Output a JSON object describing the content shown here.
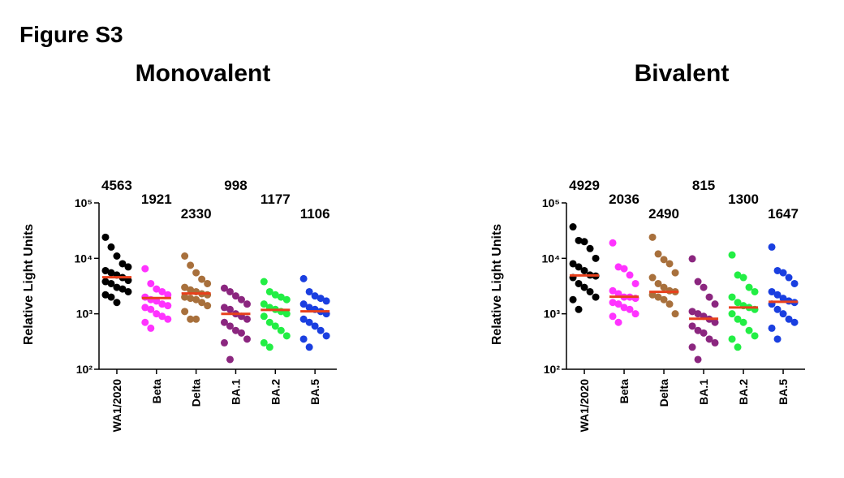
{
  "figure_title": "Figure S3",
  "chart_data": [
    {
      "type": "strip",
      "title": "Monovalent",
      "y_label": "Relative Light Units",
      "log_scale": true,
      "ylim": [
        100,
        100000
      ],
      "yticks": [
        {
          "value": 100,
          "label": "10²"
        },
        {
          "value": 1000,
          "label": "10³"
        },
        {
          "value": 10000,
          "label": "10⁴"
        },
        {
          "value": 100000,
          "label": "10⁵"
        }
      ],
      "categories": [
        "WA1/2020",
        "Beta",
        "Delta",
        "BA.1",
        "BA.2",
        "BA.5"
      ],
      "colors": [
        "#000000",
        "#ff33ff",
        "#a8703c",
        "#8b267f",
        "#22ee44",
        "#1a3fe0"
      ],
      "median_color": "#e8401c",
      "medians": [
        4563,
        1921,
        2330,
        998,
        1177,
        1106
      ],
      "points": [
        [
          24000,
          16000,
          11000,
          8000,
          7000,
          6000,
          5500,
          5000,
          4500,
          4000,
          3800,
          3500,
          3000,
          2800,
          2500,
          2200,
          2000,
          1600
        ],
        [
          6500,
          3500,
          2800,
          2500,
          2200,
          2000,
          1800,
          1700,
          1500,
          1400,
          1300,
          1200,
          1000,
          900,
          800,
          700,
          550
        ],
        [
          11000,
          7500,
          5500,
          4200,
          3500,
          3000,
          2700,
          2500,
          2300,
          2200,
          2000,
          1900,
          1800,
          1600,
          1400,
          1100,
          800,
          800
        ],
        [
          2900,
          2500,
          2100,
          1800,
          1500,
          1300,
          1200,
          1000,
          900,
          800,
          700,
          600,
          500,
          450,
          350,
          300,
          150
        ],
        [
          3800,
          2500,
          2200,
          2000,
          1800,
          1500,
          1300,
          1200,
          1100,
          1000,
          900,
          700,
          600,
          500,
          400,
          300,
          250
        ],
        [
          4300,
          2500,
          2100,
          1900,
          1700,
          1500,
          1300,
          1200,
          1100,
          1000,
          800,
          700,
          600,
          500,
          400,
          350,
          250
        ]
      ]
    },
    {
      "type": "strip",
      "title": "Bivalent",
      "y_label": "Relative Light Units",
      "log_scale": true,
      "ylim": [
        100,
        100000
      ],
      "yticks": [
        {
          "value": 100,
          "label": "10²"
        },
        {
          "value": 1000,
          "label": "10³"
        },
        {
          "value": 10000,
          "label": "10⁴"
        },
        {
          "value": 100000,
          "label": "10⁵"
        }
      ],
      "categories": [
        "WA1/2020",
        "Beta",
        "Delta",
        "BA.1",
        "BA.2",
        "BA.5"
      ],
      "colors": [
        "#000000",
        "#ff33ff",
        "#a8703c",
        "#8b267f",
        "#22ee44",
        "#1a3fe0"
      ],
      "median_color": "#e8401c",
      "medians": [
        4929,
        2036,
        2490,
        815,
        1300,
        1647
      ],
      "points": [
        [
          37000,
          21000,
          20000,
          15000,
          10000,
          8000,
          7000,
          6000,
          5000,
          4800,
          4500,
          3500,
          3000,
          2500,
          2000,
          1800,
          1200
        ],
        [
          19000,
          7000,
          6500,
          5000,
          3500,
          2600,
          2300,
          2000,
          2000,
          1900,
          1600,
          1500,
          1300,
          1200,
          1000,
          900,
          700
        ],
        [
          24000,
          12000,
          9500,
          8000,
          5500,
          4500,
          3500,
          3000,
          2600,
          2500,
          2200,
          2000,
          1800,
          1500,
          1000
        ],
        [
          9800,
          3800,
          3000,
          2000,
          1500,
          1100,
          1000,
          900,
          800,
          700,
          600,
          500,
          450,
          350,
          300,
          250,
          150
        ],
        [
          11500,
          5000,
          4500,
          3000,
          2500,
          2000,
          1600,
          1400,
          1300,
          1200,
          1000,
          800,
          700,
          500,
          400,
          350,
          250
        ],
        [
          16000,
          6000,
          5500,
          4500,
          3500,
          2500,
          2200,
          1900,
          1700,
          1600,
          1500,
          1200,
          1000,
          800,
          700,
          550,
          350
        ]
      ]
    }
  ]
}
